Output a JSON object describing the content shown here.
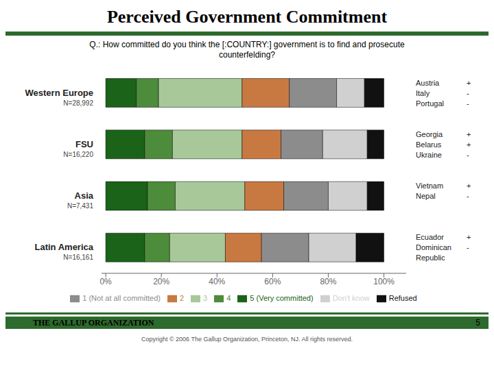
{
  "chart_data": {
    "type": "bar",
    "orientation": "horizontal",
    "stacked": true,
    "grid": false,
    "legend": "bottom",
    "title": "Perceived Government Commitment",
    "subtitle": "Q.: How committed do you think the [:COUNTRY:] government is to find and prosecute\ncounterfelding?",
    "categories": [
      "Western Europe",
      "FSU",
      "Asia",
      "Latin America"
    ],
    "group_notes": [
      "N=28,992",
      "N=16,220",
      "N=7,431",
      "N=16,161"
    ],
    "country_notes": [
      [
        [
          "Austria",
          "+"
        ],
        [
          "Italy",
          "-"
        ],
        [
          "Portugal",
          "-"
        ]
      ],
      [
        [
          "Georgia",
          "+"
        ],
        [
          "Belarus",
          "+"
        ],
        [
          "Ukraine",
          "-"
        ]
      ],
      [
        [
          "Vietnam",
          "+"
        ],
        [
          "Nepal",
          "-"
        ]
      ],
      [
        [
          "Ecuador",
          "+"
        ],
        [
          "Dominican",
          "-"
        ],
        [
          "Republic"
        ]
      ]
    ],
    "series": [
      {
        "name": "5 (Very committed)",
        "color": "#1a6318",
        "values": [
          11,
          14,
          15,
          14
        ]
      },
      {
        "name": "4",
        "color": "#4d8c3b",
        "values": [
          8,
          10,
          10,
          9
        ]
      },
      {
        "name": "3",
        "color": "#a8c89a",
        "values": [
          30,
          25,
          25,
          20
        ]
      },
      {
        "name": "2",
        "color": "#c87941",
        "values": [
          17,
          14,
          14,
          13
        ]
      },
      {
        "name": "1 (Not at all committed)",
        "color": "#8c8c8c",
        "values": [
          17,
          15,
          16,
          17
        ]
      },
      {
        "name": "Don't know",
        "color": "#d0d0d0",
        "values": [
          10,
          16,
          14,
          17
        ]
      },
      {
        "name": "Refused",
        "color": "#111111",
        "values": [
          7,
          6,
          6,
          10
        ]
      }
    ],
    "xlim": [
      -1.5,
      108
    ],
    "xticks": [
      {
        "value": 0,
        "label": "0%"
      },
      {
        "value": 20,
        "label": "20%"
      },
      {
        "value": 40,
        "label": "40%"
      },
      {
        "value": 60,
        "label": "60%"
      },
      {
        "value": 80,
        "label": "80%"
      },
      {
        "value": 100,
        "label": "100%"
      }
    ],
    "footer": "THE GALLUP ORGANIZATION",
    "page": "5",
    "note": "Copyright © 2006 The Gallup Organization, Princeton, NJ.  All rights reserved."
  }
}
